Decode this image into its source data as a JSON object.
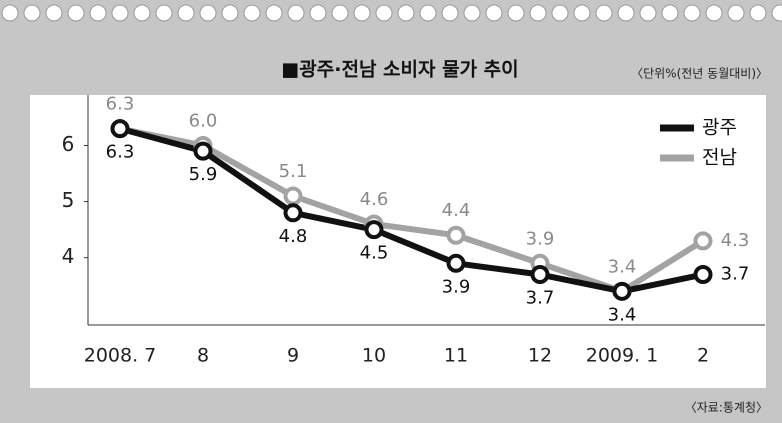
{
  "chart_data": {
    "type": "line",
    "title": "■광주·전남 소비자 물가 추이",
    "subtitle": "〈단위%(전년 동월대비)〉",
    "source": "〈자료:통계청〉",
    "categories": [
      "2008. 7",
      "8",
      "9",
      "10",
      "11",
      "12",
      "2009. 1",
      "2"
    ],
    "series": [
      {
        "name": "광주",
        "color": "#111111",
        "values": [
          6.3,
          5.9,
          4.8,
          4.5,
          3.9,
          3.7,
          3.4,
          3.7
        ],
        "value_labels": [
          "6.3",
          "5.9",
          "4.8",
          "4.5",
          "3.9",
          "3.7",
          "3.4",
          "3.7"
        ]
      },
      {
        "name": "전남",
        "color": "#a3a3a3",
        "values": [
          6.3,
          6.0,
          5.1,
          4.6,
          4.4,
          3.9,
          3.4,
          4.3
        ],
        "value_labels": [
          "6.3",
          "6.0",
          "5.1",
          "4.6",
          "4.4",
          "3.9",
          "3.4",
          "4.3"
        ]
      }
    ],
    "ylim": [
      2.8,
      6.9
    ],
    "yticks": [
      4,
      5,
      6
    ],
    "legend": "top-right"
  }
}
